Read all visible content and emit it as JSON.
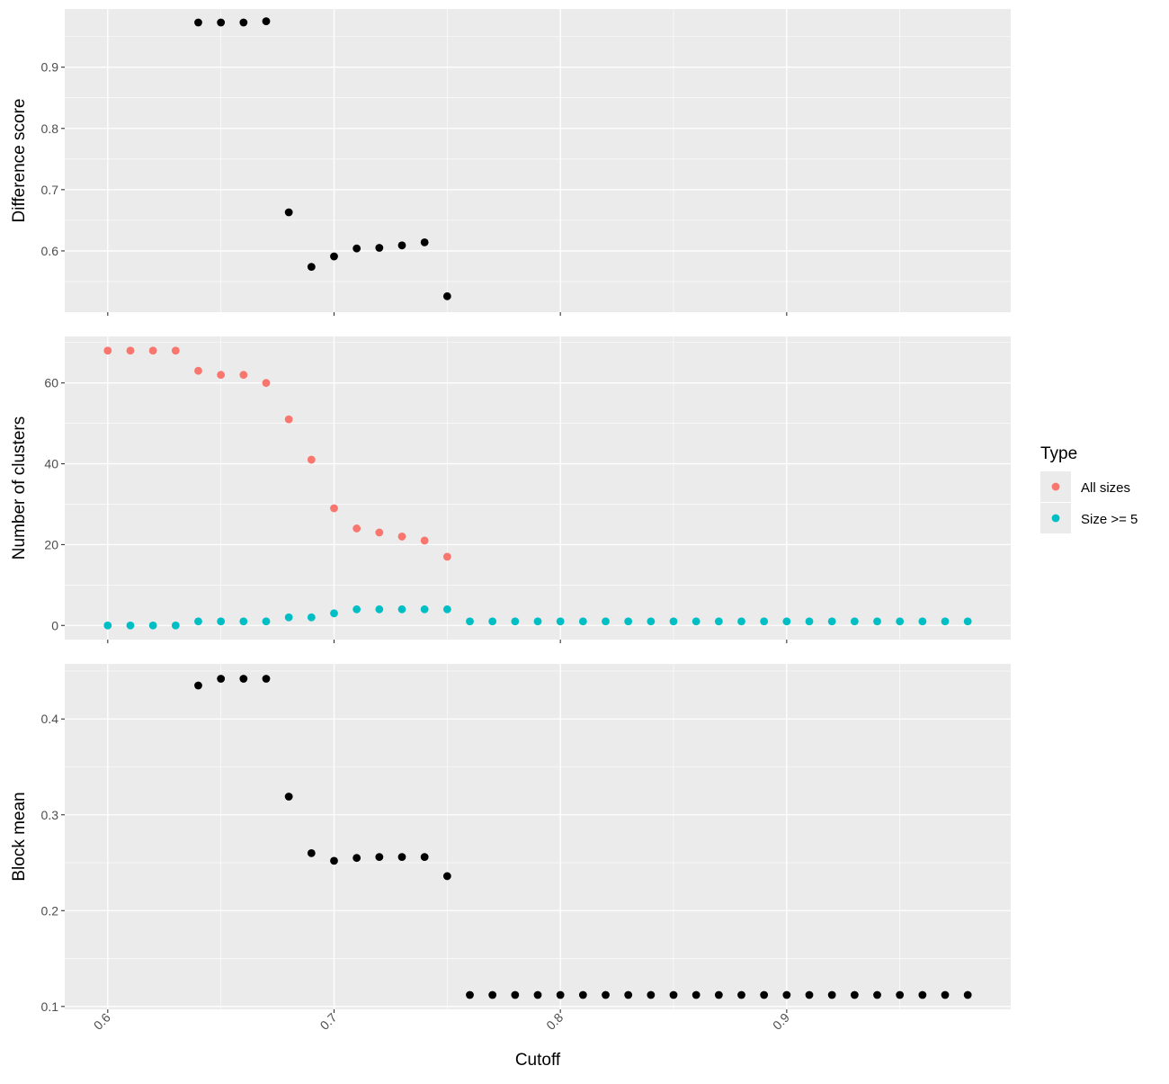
{
  "colors": {
    "panel_bg": "#EBEBEB",
    "grid_major": "#FFFFFF",
    "point_black": "#000000",
    "all_sizes": "#F8766D",
    "size_ge_5": "#00BFC4",
    "tick_text": "#4D4D4D"
  },
  "x_axis": {
    "title": "Cutoff",
    "ticks": [
      0.6,
      0.7,
      0.8,
      0.9
    ],
    "tick_labels": [
      "0.6",
      "0.7",
      "0.8",
      "0.9"
    ],
    "xlim": [
      0.581,
      0.999
    ],
    "label_rotation": "45 degrees"
  },
  "legend": {
    "title": "Type",
    "position": "right",
    "entries": [
      "All sizes",
      "Size >= 5"
    ]
  },
  "chart_data": [
    {
      "type": "scatter",
      "panel": "top",
      "ylabel": "Difference score",
      "ylim": [
        0.5,
        0.995
      ],
      "y_ticks": [
        0.6,
        0.7,
        0.8,
        0.9
      ],
      "y_tick_labels": [
        "0.6",
        "0.7",
        "0.8",
        "0.9"
      ],
      "grid": true,
      "series": [
        {
          "color_key": "point_black",
          "x": [
            0.64,
            0.65,
            0.66,
            0.67,
            0.68,
            0.69,
            0.7,
            0.71,
            0.72,
            0.73,
            0.74,
            0.75
          ],
          "y": [
            0.973,
            0.973,
            0.973,
            0.975,
            0.663,
            0.574,
            0.591,
            0.604,
            0.605,
            0.609,
            0.614,
            0.526
          ]
        }
      ]
    },
    {
      "type": "scatter",
      "panel": "middle",
      "ylabel": "Number of clusters",
      "ylim": [
        -3.5,
        71.5
      ],
      "y_ticks": [
        0,
        20,
        40,
        60
      ],
      "y_tick_labels": [
        "0",
        "20",
        "40",
        "60"
      ],
      "grid": true,
      "series": [
        {
          "name": "All sizes",
          "color_key": "all_sizes",
          "x": [
            0.6,
            0.61,
            0.62,
            0.63,
            0.64,
            0.65,
            0.66,
            0.67,
            0.68,
            0.69,
            0.7,
            0.71,
            0.72,
            0.73,
            0.74,
            0.75
          ],
          "y": [
            68,
            68,
            68,
            68,
            63,
            62,
            62,
            60,
            51,
            41,
            29,
            24,
            23,
            22,
            21,
            17
          ]
        },
        {
          "name": "Size >= 5",
          "color_key": "size_ge_5",
          "x": [
            0.6,
            0.61,
            0.62,
            0.63,
            0.64,
            0.65,
            0.66,
            0.67,
            0.68,
            0.69,
            0.7,
            0.71,
            0.72,
            0.73,
            0.74,
            0.75,
            0.76,
            0.77,
            0.78,
            0.79,
            0.8,
            0.81,
            0.82,
            0.83,
            0.84,
            0.85,
            0.86,
            0.87,
            0.88,
            0.89,
            0.9,
            0.91,
            0.92,
            0.93,
            0.94,
            0.95,
            0.96,
            0.97,
            0.98
          ],
          "y": [
            0,
            0,
            0,
            0,
            1,
            1,
            1,
            1,
            2,
            2,
            3,
            4,
            4,
            4,
            4,
            4,
            1,
            1,
            1,
            1,
            1,
            1,
            1,
            1,
            1,
            1,
            1,
            1,
            1,
            1,
            1,
            1,
            1,
            1,
            1,
            1,
            1,
            1,
            1
          ]
        }
      ]
    },
    {
      "type": "scatter",
      "panel": "bottom",
      "xlabel": "Cutoff",
      "ylabel": "Block mean",
      "ylim": [
        0.097,
        0.4575
      ],
      "y_ticks": [
        0.1,
        0.2,
        0.3,
        0.4
      ],
      "y_tick_labels": [
        "0.1",
        "0.2",
        "0.3",
        "0.4"
      ],
      "grid": true,
      "series": [
        {
          "color_key": "point_black",
          "x": [
            0.64,
            0.65,
            0.66,
            0.67,
            0.68,
            0.69,
            0.7,
            0.71,
            0.72,
            0.73,
            0.74,
            0.75,
            0.76,
            0.77,
            0.78,
            0.79,
            0.8,
            0.81,
            0.82,
            0.83,
            0.84,
            0.85,
            0.86,
            0.87,
            0.88,
            0.89,
            0.9,
            0.91,
            0.92,
            0.93,
            0.94,
            0.95,
            0.96,
            0.97,
            0.98
          ],
          "y": [
            0.435,
            0.442,
            0.442,
            0.442,
            0.319,
            0.26,
            0.252,
            0.255,
            0.256,
            0.256,
            0.256,
            0.236,
            0.112,
            0.112,
            0.112,
            0.112,
            0.112,
            0.112,
            0.112,
            0.112,
            0.112,
            0.112,
            0.112,
            0.112,
            0.112,
            0.112,
            0.112,
            0.112,
            0.112,
            0.112,
            0.112,
            0.112,
            0.112,
            0.112,
            0.112
          ]
        }
      ]
    }
  ]
}
